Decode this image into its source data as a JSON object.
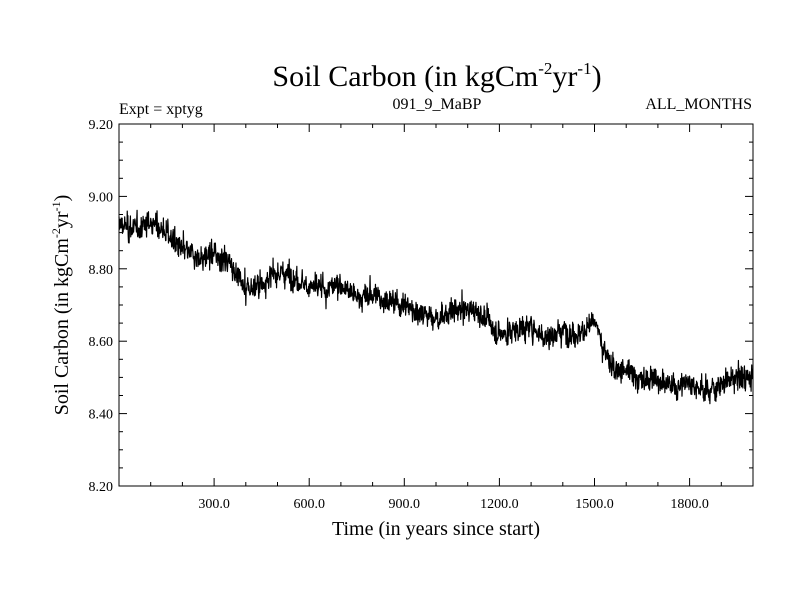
{
  "chart_data": {
    "type": "line",
    "title": {
      "main": "Soil Carbon (in kgCm",
      "sup1": "-2",
      "mid": "yr",
      "sup2": "-1",
      "end": ")"
    },
    "header": {
      "left": "Expt = xptyg",
      "center": "091_9_MaBP",
      "right": "ALL_MONTHS"
    },
    "xlabel": "Time (in years since start)",
    "ylabel": {
      "main": "Soil Carbon (in kgCm",
      "sup1": "-2",
      "mid": "yr",
      "sup2": "-1",
      "end": ")"
    },
    "xlim": [
      0,
      2000
    ],
    "ylim": [
      8.2,
      9.2
    ],
    "xticks": [
      300,
      600,
      900,
      1200,
      1500,
      1800
    ],
    "xtick_labels": [
      "300.0",
      "600.0",
      "900.0",
      "1200.0",
      "1500.0",
      "1800.0"
    ],
    "yticks": [
      8.2,
      8.4,
      8.6,
      8.8,
      9.0,
      9.2
    ],
    "ytick_labels": [
      "8.20",
      "8.40",
      "8.60",
      "8.80",
      "9.00",
      "9.20"
    ],
    "series": [
      {
        "color": "#000000",
        "x": [
          0,
          50,
          100,
          150,
          200,
          250,
          300,
          350,
          400,
          450,
          500,
          550,
          600,
          650,
          700,
          750,
          800,
          850,
          900,
          950,
          1000,
          1050,
          1100,
          1150,
          1200,
          1250,
          1300,
          1350,
          1400,
          1450,
          1500,
          1550,
          1600,
          1650,
          1700,
          1750,
          1800,
          1850,
          1900,
          1950,
          2000
        ],
        "values": [
          8.92,
          8.91,
          8.93,
          8.9,
          8.85,
          8.83,
          8.84,
          8.82,
          8.74,
          8.76,
          8.79,
          8.78,
          8.75,
          8.74,
          8.76,
          8.72,
          8.73,
          8.71,
          8.7,
          8.68,
          8.66,
          8.68,
          8.69,
          8.67,
          8.62,
          8.63,
          8.64,
          8.61,
          8.63,
          8.62,
          8.65,
          8.53,
          8.52,
          8.49,
          8.5,
          8.47,
          8.49,
          8.46,
          8.48,
          8.5,
          8.5
        ]
      }
    ]
  }
}
